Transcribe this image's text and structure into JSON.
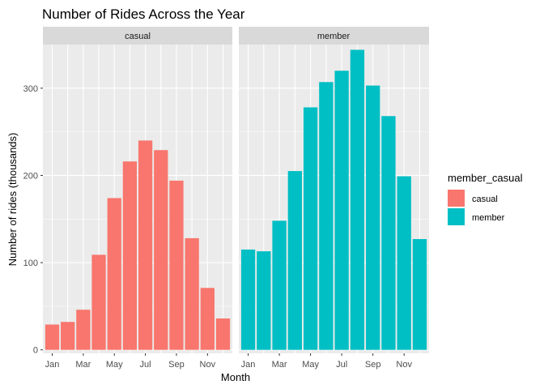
{
  "chart_data": {
    "type": "bar",
    "title": "Number of Rides Across the Year",
    "xlabel": "Month",
    "ylabel": "Number of rides (thousands)",
    "ylim": [
      -4,
      350
    ],
    "yticks": [
      0,
      100,
      200,
      300
    ],
    "categories": [
      "Jan",
      "Feb",
      "Mar",
      "Apr",
      "May",
      "Jun",
      "Jul",
      "Aug",
      "Sep",
      "Oct",
      "Nov",
      "Dec"
    ],
    "xtick_labels": [
      "Jan",
      "Mar",
      "May",
      "Jul",
      "Sep",
      "Nov"
    ],
    "facets": [
      "casual",
      "member"
    ],
    "legend": {
      "title": "member_casual",
      "position": "right",
      "entries": [
        "casual",
        "member"
      ]
    },
    "series": [
      {
        "name": "casual",
        "color": "#F8766D",
        "values": [
          29,
          32,
          46,
          109,
          174,
          216,
          240,
          229,
          194,
          128,
          71,
          36
        ]
      },
      {
        "name": "member",
        "color": "#00BFC4",
        "values": [
          115,
          113,
          148,
          205,
          278,
          307,
          320,
          344,
          303,
          268,
          199,
          127
        ]
      }
    ],
    "grid": true
  }
}
